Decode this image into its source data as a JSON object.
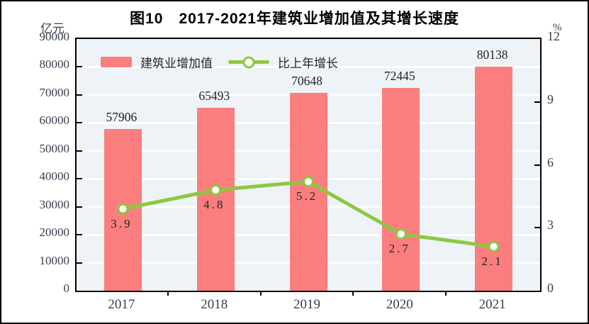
{
  "chart_data": {
    "type": "combo",
    "title": "图10　2017-2021年建筑业增加值及其增长速度",
    "categories": [
      "2017",
      "2018",
      "2019",
      "2020",
      "2021"
    ],
    "series": [
      {
        "name": "建筑业增加值",
        "type": "bar",
        "axis": "left",
        "color": "#fb7e7e",
        "values": [
          57906,
          65493,
          70648,
          72445,
          80138
        ],
        "labels": [
          "57906",
          "65493",
          "70648",
          "72445",
          "80138"
        ]
      },
      {
        "name": "比上年增长",
        "type": "line",
        "axis": "right",
        "color": "#8ec741",
        "marker_fill": "#ffffff",
        "values": [
          3.9,
          4.8,
          5.2,
          2.7,
          2.1
        ],
        "labels": [
          "3.9",
          "4.8",
          "5.2",
          "2.7",
          "2.1"
        ]
      }
    ],
    "left_axis": {
      "unit": "亿元",
      "min": 0,
      "max": 90000,
      "step": 10000,
      "tick_labels": [
        "0",
        "10000",
        "20000",
        "30000",
        "40000",
        "50000",
        "60000",
        "70000",
        "80000",
        "90000"
      ]
    },
    "right_axis": {
      "unit": "%",
      "min": 0,
      "max": 12,
      "step": 3,
      "tick_labels": [
        "0",
        "3",
        "6",
        "9",
        "12"
      ]
    },
    "legend_position": "top-left-inside",
    "grid": true,
    "plot_bg": "#edf3f7",
    "grid_color": "#ffffff",
    "frame_color": "#000000"
  }
}
